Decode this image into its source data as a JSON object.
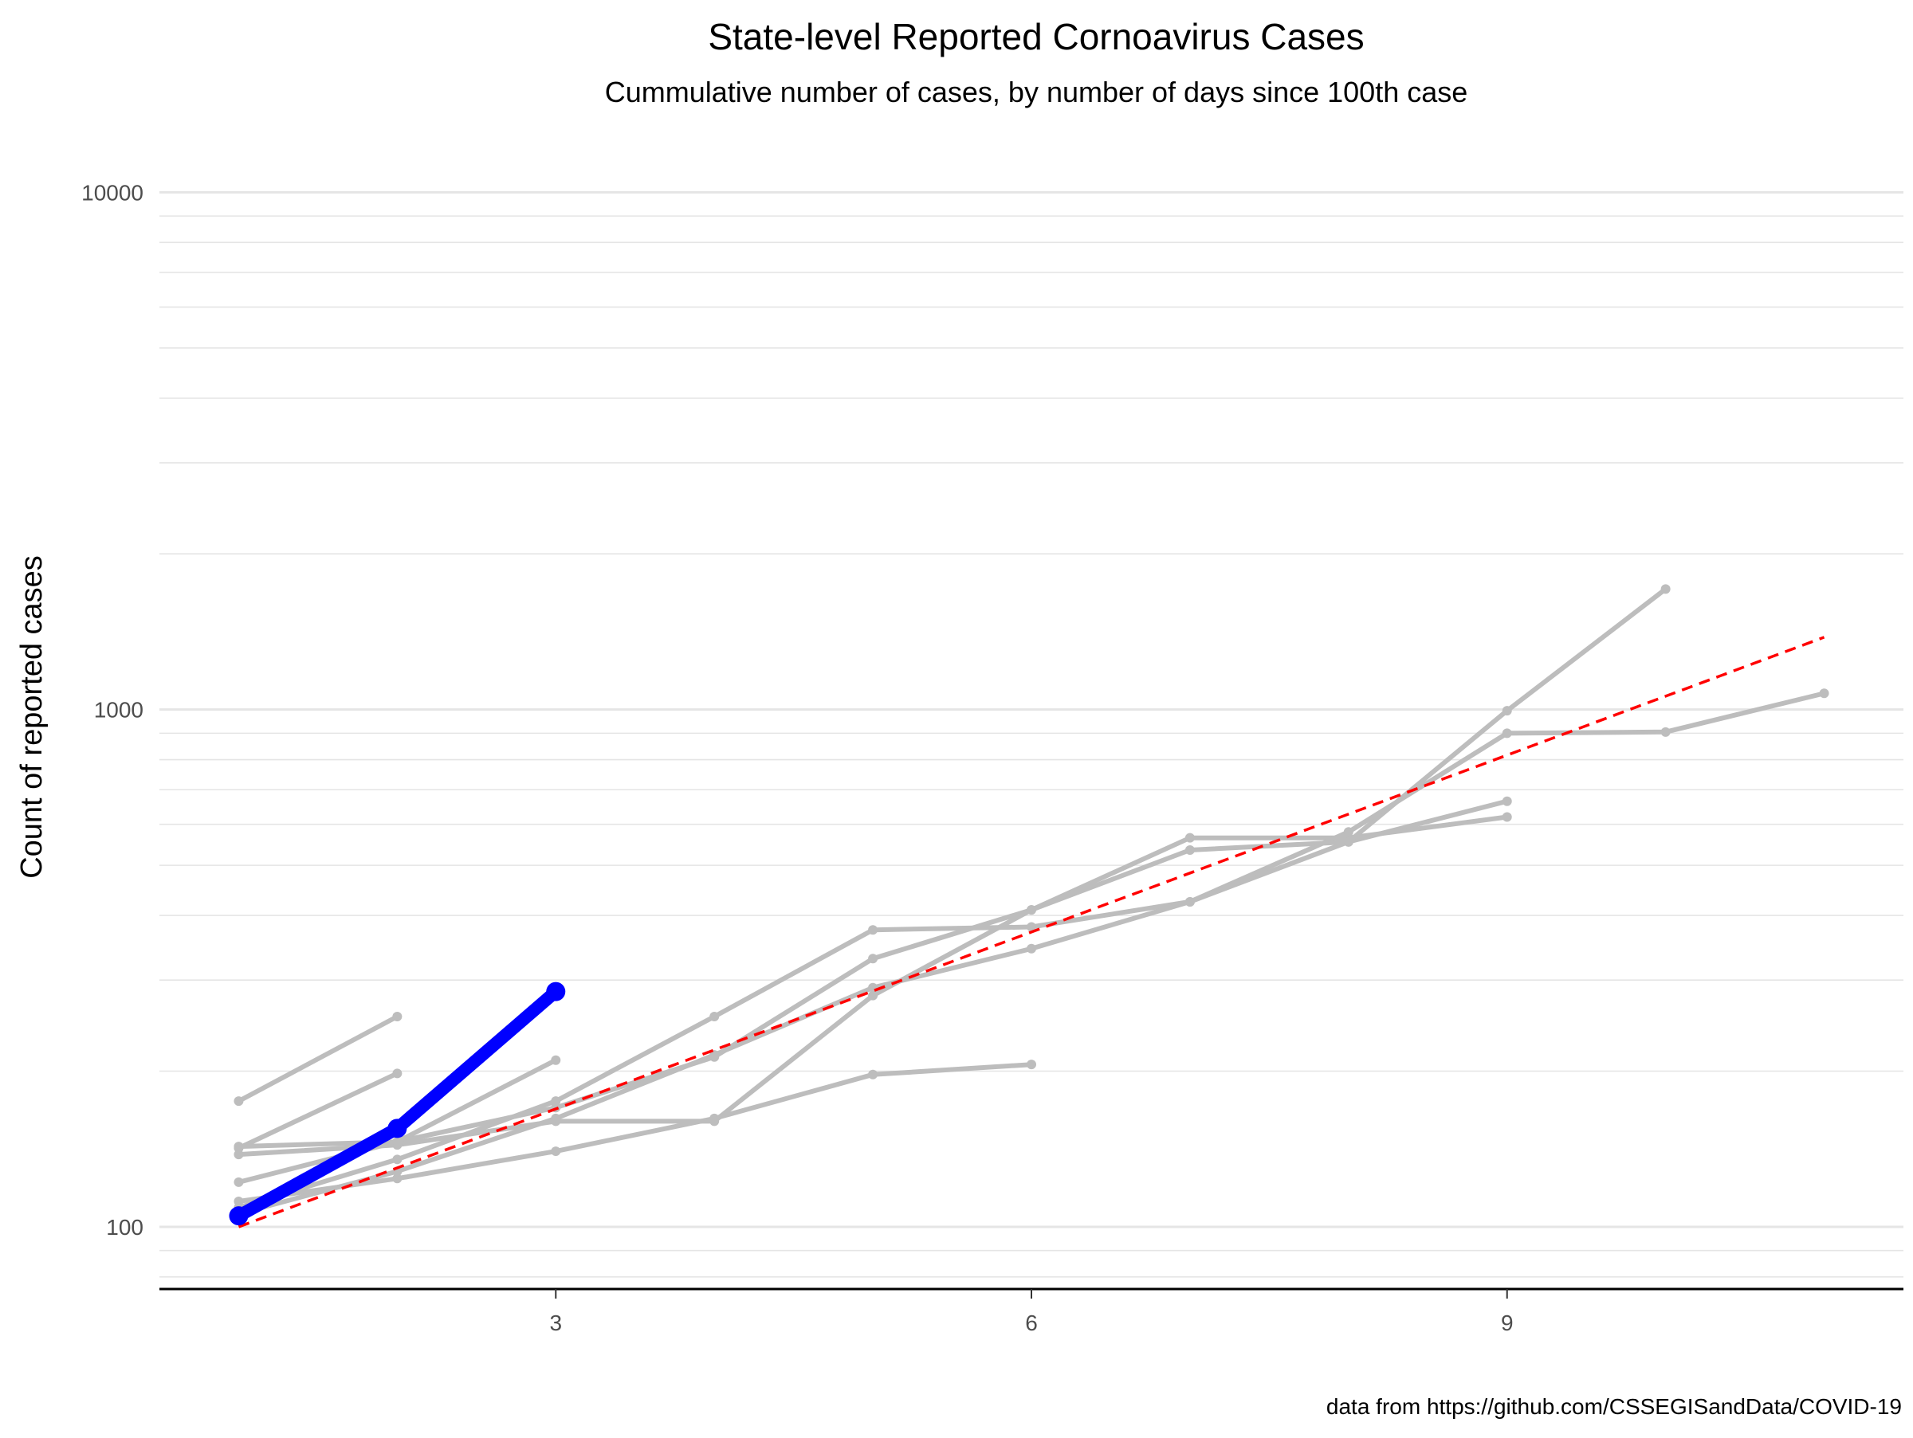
{
  "chart_data": {
    "type": "line",
    "title": "State-level Reported Cornoavirus Cases",
    "subtitle": "Cummulative number of cases, by number of days since 100th case",
    "xlabel": "",
    "ylabel": "Count of reported cases",
    "caption": "data from https://github.com/CSSEGISandData/COVID-19",
    "x_scale": "linear",
    "y_scale": "log10",
    "xlim": [
      0.5,
      11.5
    ],
    "ylim": [
      78,
      12000
    ],
    "x_ticks": [
      3,
      6,
      9
    ],
    "x_tick_labels": [
      "3",
      "6",
      "9"
    ],
    "y_ticks": [
      100,
      1000,
      10000
    ],
    "y_tick_labels": [
      "100",
      "1000",
      "10000"
    ],
    "grid": "horizontal-major-and-minor",
    "colors": {
      "background_series": "#bdbdbd",
      "highlight_series": "#0000ff",
      "reference_line": "#ff0000",
      "grid": "#e5e5e5",
      "axis": "#000000"
    },
    "background_series": [
      {
        "x": [
          1,
          2
        ],
        "y": [
          175,
          255
        ]
      },
      {
        "x": [
          1,
          2
        ],
        "y": [
          142,
          198
        ]
      },
      {
        "x": [
          1,
          2,
          3,
          4,
          5,
          6,
          7,
          8,
          9
        ],
        "y": [
          143,
          146,
          170,
          213,
          330,
          410,
          535,
          555,
          665
        ]
      },
      {
        "x": [
          1,
          2,
          3,
          4,
          5,
          6
        ],
        "y": [
          112,
          124,
          140,
          162,
          197,
          206
        ]
      },
      {
        "x": [
          1,
          2,
          3,
          4,
          5,
          6,
          7,
          8,
          9
        ],
        "y": [
          138,
          144,
          160,
          160,
          280,
          410,
          565,
          565,
          620
        ]
      },
      {
        "x": [
          1,
          2,
          3
        ],
        "y": [
          122,
          146,
          210
        ]
      },
      {
        "x": [
          1,
          2,
          3,
          4,
          5,
          6,
          7,
          8,
          9,
          10
        ],
        "y": [
          109,
          135,
          175,
          255,
          375,
          380,
          425,
          555,
          995,
          1710
        ]
      },
      {
        "x": [
          1,
          2,
          3,
          4,
          5,
          6,
          7,
          8,
          9,
          10,
          11
        ],
        "y": [
          106,
          128,
          162,
          215,
          290,
          345,
          425,
          580,
          900,
          905,
          1075
        ]
      }
    ],
    "highlight_series": {
      "x": [
        1,
        2,
        3
      ],
      "y": [
        105,
        155,
        285
      ]
    },
    "reference_line": {
      "x": [
        1,
        11
      ],
      "y": [
        100,
        1380
      ]
    }
  }
}
